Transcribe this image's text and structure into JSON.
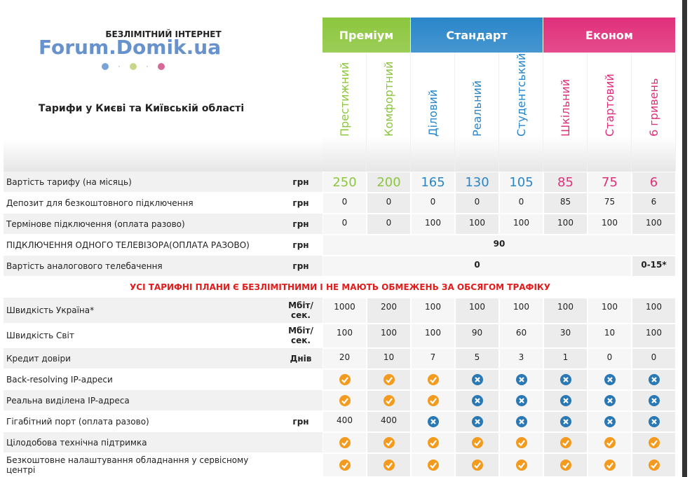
{
  "header": {
    "title": "БЕЗЛІМІТНИЙ ІНТЕРНЕТ",
    "watermark": "Forum.Domik.ua",
    "subtitle": "Тарифи у Києві та Київській області"
  },
  "groups": [
    {
      "name": "Преміум",
      "color": "#8cc63e",
      "plans": [
        "Престижний",
        "Комфортний"
      ]
    },
    {
      "name": "Стандарт",
      "color": "#2a86c9",
      "plans": [
        "Діловий",
        "Реальний",
        "Студентський"
      ]
    },
    {
      "name": "Економ",
      "color": "#e0307b",
      "plans": [
        "Шкільний",
        "Стартовий",
        "6 гривень"
      ]
    }
  ],
  "pricing": [
    {
      "label": "Вартість тарифу (на місяць)",
      "unit": "грн",
      "values": [
        250,
        200,
        165,
        130,
        105,
        85,
        75,
        6
      ]
    },
    {
      "label": "Депозит для безкоштовного підключення",
      "unit": "грн",
      "values": [
        0,
        0,
        0,
        0,
        0,
        85,
        75,
        6
      ]
    },
    {
      "label": "Термінове підключення (оплата разово)",
      "unit": "грн",
      "values": [
        0,
        0,
        100,
        100,
        100,
        100,
        100,
        100
      ]
    },
    {
      "label": "ПІДКЛЮЧЕННЯ ОДНОГО ТЕЛЕВІЗОРА(ОПЛАТА РАЗОВО)",
      "unit": "грн",
      "values": [
        90
      ]
    },
    {
      "label": "Вартість аналогового телебачення",
      "unit": "грн",
      "values": [
        0,
        "0-15*"
      ]
    }
  ],
  "banner": "УСІ ТАРИФНІ ПЛАНИ Є БЕЗЛІМІТНИМИ І НЕ МАЮТЬ ОБМЕЖЕНЬ ЗА ОБСЯГОМ ТРАФІКУ",
  "features": [
    {
      "label": "Швидкість Україна*",
      "unit": "Мбіт/ сек.",
      "values": [
        1000,
        200,
        100,
        100,
        100,
        100,
        100,
        100
      ]
    },
    {
      "label": "Швидкість Світ",
      "unit": "Мбіт/ сек.",
      "values": [
        100,
        100,
        100,
        90,
        60,
        30,
        10,
        100
      ]
    },
    {
      "label": "Кредит довіри",
      "unit": "Днів",
      "values": [
        20,
        10,
        7,
        5,
        3,
        1,
        0,
        0
      ]
    },
    {
      "label": "Back-resolving IP-адреси",
      "values": [
        true,
        true,
        true,
        false,
        false,
        false,
        false,
        false
      ]
    },
    {
      "label": "Реальна виділена IP-адреса",
      "values": [
        true,
        true,
        true,
        false,
        false,
        false,
        false,
        false
      ]
    },
    {
      "label": "Гігабітний порт (оплата разово)",
      "unit": "грн",
      "values": [
        400,
        400,
        false,
        false,
        false,
        false,
        false,
        false
      ]
    },
    {
      "label": "Цілодобова технічна підтримка",
      "values": [
        true,
        true,
        true,
        true,
        true,
        true,
        true,
        true
      ]
    },
    {
      "label": "Безкоштовне налаштування обладнання у сервісному центрі",
      "values": [
        true,
        true,
        true,
        true,
        true,
        true,
        true,
        true
      ]
    }
  ]
}
